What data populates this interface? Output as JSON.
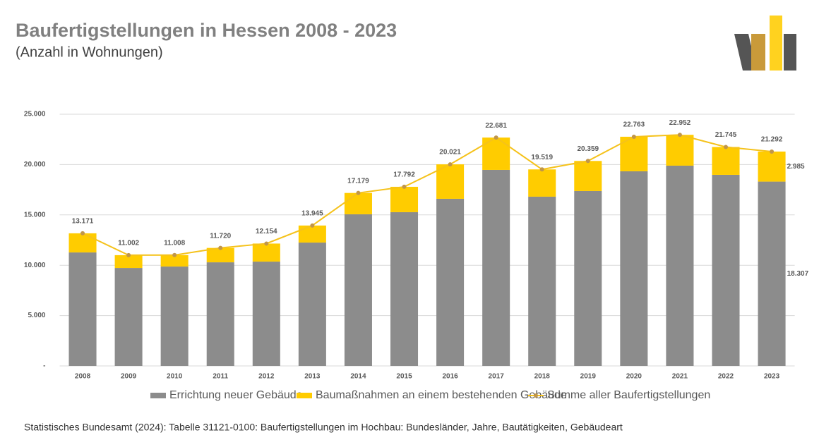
{
  "header": {
    "title": "Baufertigstellungen in Hessen 2008 - 2023",
    "subtitle": "(Anzahl in Wohnungen)"
  },
  "footer": {
    "source": "Statistisches Bundesamt (2024): Tabelle 31121-0100: Baufertigstellungen im Hochbau: Bundesländer, Jahre, Bautätigkeiten, Gebäudeart"
  },
  "chart_data": {
    "type": "bar",
    "stacked": true,
    "categories": [
      "2008",
      "2009",
      "2010",
      "2011",
      "2012",
      "2013",
      "2014",
      "2015",
      "2016",
      "2017",
      "2018",
      "2019",
      "2020",
      "2021",
      "2022",
      "2023"
    ],
    "series": [
      {
        "name": "Errichtung neuer Gebäude",
        "color": "#8c8c8c",
        "values": [
          11270,
          9730,
          9870,
          10290,
          10360,
          12250,
          15060,
          15270,
          16600,
          19470,
          16810,
          17370,
          19330,
          19890,
          18980,
          18307
        ],
        "value_labels": [
          null,
          null,
          null,
          null,
          null,
          null,
          null,
          null,
          null,
          null,
          null,
          null,
          null,
          null,
          null,
          "18.307"
        ]
      },
      {
        "name": "Baumaßnahmen an einem bestehenden Gebäude",
        "color": "#ffcc00",
        "values": [
          1901,
          1272,
          1138,
          1430,
          1794,
          1695,
          2119,
          2522,
          3421,
          3211,
          2709,
          2989,
          3433,
          3062,
          2765,
          2985
        ],
        "value_labels": [
          null,
          null,
          null,
          null,
          null,
          null,
          null,
          null,
          null,
          null,
          null,
          null,
          null,
          null,
          null,
          "2.985"
        ]
      },
      {
        "name": "Summe aller Baufertigstellungen",
        "type": "line",
        "color": "#f5c21b",
        "marker_color": "#c0964a",
        "values": [
          13171,
          11002,
          11008,
          11720,
          12154,
          13945,
          17179,
          17792,
          20021,
          22681,
          19519,
          20359,
          22763,
          22952,
          21745,
          21292
        ],
        "value_labels": [
          "13.171",
          "11.002",
          "11.008",
          "11.720",
          "12.154",
          "13.945",
          "17.179",
          "17.792",
          "20.021",
          "22.681",
          "19.519",
          "20.359",
          "22.763",
          "22.952",
          "21.745",
          "21.292"
        ]
      }
    ],
    "ylim": [
      0,
      25000
    ],
    "yticks": [
      {
        "value": 0,
        "label": "-"
      },
      {
        "value": 5000,
        "label": "5.000"
      },
      {
        "value": 10000,
        "label": "10.000"
      },
      {
        "value": 15000,
        "label": "15.000"
      },
      {
        "value": 20000,
        "label": "20.000"
      },
      {
        "value": 25000,
        "label": "25.000"
      }
    ],
    "grid": true,
    "legend": "bottom"
  }
}
